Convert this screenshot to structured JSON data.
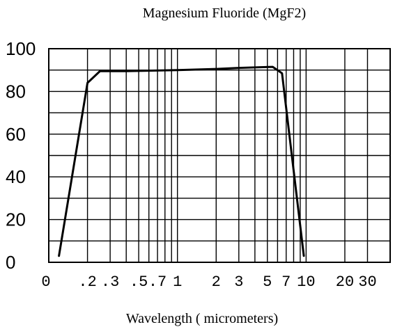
{
  "chart_data": {
    "type": "line",
    "title": "Magnesium Fluoride (MgF2)",
    "xlabel": "Wavelength ( micrometers)",
    "ylabel": "",
    "x_scale": "log",
    "xlim": [
      0.1,
      45
    ],
    "ylim": [
      0,
      100
    ],
    "grid": true,
    "y_ticks": [
      "0",
      "20",
      "40",
      "60",
      "80",
      "100"
    ],
    "x_ticks": [
      {
        "value": 0.1,
        "label": "0"
      },
      {
        "value": 0.2,
        "label": ".2"
      },
      {
        "value": 0.3,
        "label": ".3"
      },
      {
        "value": 0.5,
        "label": ".5"
      },
      {
        "value": 0.7,
        "label": ".7"
      },
      {
        "value": 1,
        "label": "1"
      },
      {
        "value": 2,
        "label": "2"
      },
      {
        "value": 3,
        "label": "3"
      },
      {
        "value": 5,
        "label": "5"
      },
      {
        "value": 7,
        "label": "7"
      },
      {
        "value": 10,
        "label": "10"
      },
      {
        "value": 20,
        "label": "20"
      },
      {
        "value": 30,
        "label": "30"
      }
    ],
    "x_gridlines": [
      0.2,
      0.3,
      0.4,
      0.5,
      0.6,
      0.7,
      0.8,
      0.9,
      1,
      2,
      3,
      4,
      5,
      6,
      7,
      8,
      9,
      10,
      20,
      30
    ],
    "y_gridlines": [
      10,
      20,
      30,
      40,
      50,
      60,
      70,
      80,
      90,
      100
    ],
    "series": [
      {
        "x": [
          0.12,
          0.2,
          0.25,
          0.4,
          1.0,
          2.0,
          3.0,
          5.5,
          6.5,
          9.6
        ],
        "y": [
          3,
          84,
          89.5,
          89.5,
          90,
          90.5,
          91,
          91.5,
          88.5,
          3
        ]
      }
    ]
  }
}
